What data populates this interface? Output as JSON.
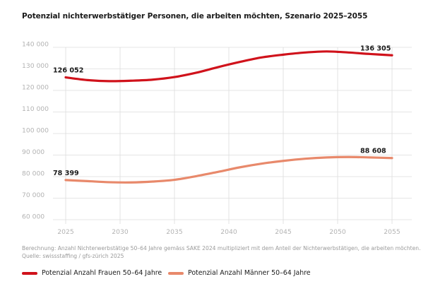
{
  "chart_data": {
    "type": "line",
    "title": "Potenzial nichterwerbstätiger Personen, die arbeiten möchten, Szenario 2025–2055",
    "xlabel": "",
    "ylabel": "",
    "xlim": [
      2025,
      2055
    ],
    "ylim": [
      60000,
      140000
    ],
    "x_ticks": [
      2025,
      2030,
      2035,
      2040,
      2045,
      2050,
      2055
    ],
    "y_ticks": [
      60000,
      70000,
      80000,
      90000,
      100000,
      110000,
      120000,
      130000,
      140000
    ],
    "y_tick_labels": [
      "60 000",
      "70 000",
      "80 000",
      "90 000",
      "100 000",
      "110 000",
      "120 000",
      "130 000",
      "140 000"
    ],
    "grid": true,
    "legend_position": "bottom",
    "series": [
      {
        "name": "Potenzial Anzahl Frauen 50–64 Jahre",
        "color": "#d0121b",
        "x": [
          2025,
          2027,
          2029,
          2031,
          2033,
          2035,
          2037,
          2039,
          2041,
          2043,
          2045,
          2047,
          2049,
          2051,
          2053,
          2055
        ],
        "values": [
          126052,
          124800,
          124300,
          124500,
          125000,
          126200,
          128200,
          130800,
          133200,
          135300,
          136600,
          137600,
          138100,
          137600,
          136900,
          136305
        ],
        "start_label": "126 052",
        "end_label": "136 305"
      },
      {
        "name": "Potenzial Anzahl Männer 50–64 Jahre",
        "color": "#e8896b",
        "x": [
          2025,
          2027,
          2029,
          2031,
          2033,
          2035,
          2037,
          2039,
          2041,
          2043,
          2045,
          2047,
          2049,
          2051,
          2053,
          2055
        ],
        "values": [
          78399,
          77900,
          77400,
          77300,
          77700,
          78500,
          80200,
          82200,
          84300,
          86000,
          87300,
          88300,
          88900,
          89100,
          88900,
          88608
        ],
        "start_label": "78 399",
        "end_label": "88 608"
      }
    ]
  },
  "notes": {
    "method": "Berechnung: Anzahl Nichterwerbstätige 50–64 Jahre gemäss SAKE 2024 multipliziert mit dem Anteil der Nichterwerbstätigen, die arbeiten möchten.",
    "source": "Quelle: swissstaffing / gfs-zürich 2025"
  }
}
